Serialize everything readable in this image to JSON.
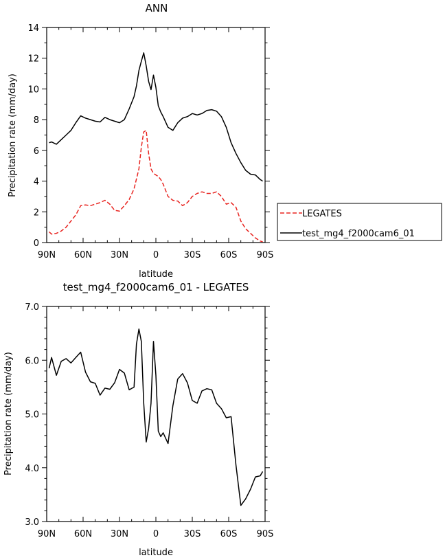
{
  "chart_data": [
    {
      "type": "line",
      "title": "ANN",
      "xlabel": "latitude",
      "ylabel": "Precipitation rate (mm/day)",
      "xlim": [
        90,
        -90
      ],
      "ylim": [
        0,
        14
      ],
      "xticks": [
        90,
        60,
        30,
        0,
        -30,
        -60,
        -90
      ],
      "xtick_labels": [
        "90N",
        "60N",
        "30N",
        "0",
        "30S",
        "60S",
        "90S"
      ],
      "yticks": [
        0,
        2,
        4,
        6,
        8,
        10,
        12,
        14
      ],
      "ytick_labels": [
        "0",
        "2",
        "4",
        "6",
        "8",
        "10",
        "12",
        "14"
      ],
      "grid": false,
      "legend_position": "right",
      "series": [
        {
          "name": "LEGATES",
          "color": "#e8231f",
          "dash": "dashed",
          "x": [
            88,
            86,
            82,
            78,
            74,
            70,
            66,
            62,
            58,
            54,
            50,
            46,
            42,
            38,
            34,
            30,
            26,
            22,
            18,
            14,
            12,
            10,
            8,
            6,
            4,
            2,
            0,
            -2,
            -4,
            -6,
            -10,
            -14,
            -18,
            -22,
            -26,
            -30,
            -34,
            -38,
            -42,
            -46,
            -50,
            -54,
            -58,
            -62,
            -66,
            -70,
            -74,
            -78,
            -82,
            -86,
            -88
          ],
          "y": [
            0.7,
            0.55,
            0.6,
            0.75,
            1.0,
            1.4,
            1.8,
            2.4,
            2.45,
            2.4,
            2.5,
            2.6,
            2.75,
            2.5,
            2.1,
            2.05,
            2.4,
            2.8,
            3.5,
            4.8,
            6.2,
            7.2,
            7.3,
            5.8,
            4.8,
            4.5,
            4.4,
            4.3,
            4.1,
            3.8,
            3.0,
            2.75,
            2.7,
            2.4,
            2.6,
            3.0,
            3.2,
            3.3,
            3.2,
            3.2,
            3.3,
            3.0,
            2.5,
            2.6,
            2.3,
            1.4,
            0.9,
            0.6,
            0.3,
            0.1,
            0.05
          ]
        },
        {
          "name": "test_mg4_f2000cam6_01",
          "color": "#000000",
          "dash": "solid",
          "x": [
            88,
            86,
            82,
            78,
            74,
            70,
            66,
            62,
            58,
            54,
            50,
            46,
            42,
            38,
            34,
            30,
            26,
            22,
            18,
            16,
            14,
            12,
            10,
            8,
            6,
            4,
            2,
            0,
            -2,
            -4,
            -6,
            -10,
            -14,
            -18,
            -22,
            -26,
            -30,
            -34,
            -38,
            -42,
            -46,
            -50,
            -54,
            -58,
            -62,
            -66,
            -70,
            -74,
            -78,
            -82,
            -86,
            -88
          ],
          "y": [
            6.5,
            6.55,
            6.4,
            6.7,
            7.0,
            7.3,
            7.8,
            8.25,
            8.1,
            8.0,
            7.9,
            7.85,
            8.15,
            8.0,
            7.9,
            7.8,
            8.0,
            8.7,
            9.5,
            10.2,
            11.2,
            11.8,
            12.35,
            11.5,
            10.5,
            9.95,
            10.9,
            10.1,
            8.9,
            8.5,
            8.2,
            7.5,
            7.3,
            7.8,
            8.1,
            8.2,
            8.4,
            8.3,
            8.4,
            8.6,
            8.65,
            8.55,
            8.2,
            7.5,
            6.5,
            5.8,
            5.2,
            4.7,
            4.45,
            4.4,
            4.1,
            4.0
          ]
        }
      ]
    },
    {
      "type": "line",
      "title": "test_mg4_f2000cam6_01 - LEGATES",
      "xlabel": "latitude",
      "ylabel": "Precipitation rate (mm/day)",
      "xlim": [
        90,
        -90
      ],
      "ylim": [
        3.0,
        7.0
      ],
      "xticks": [
        90,
        60,
        30,
        0,
        -30,
        -60,
        -90
      ],
      "xtick_labels": [
        "90N",
        "60N",
        "30N",
        "0",
        "30S",
        "60S",
        "90S"
      ],
      "yticks": [
        3.0,
        4.0,
        5.0,
        6.0,
        7.0
      ],
      "ytick_labels": [
        "3.0",
        "4.0",
        "5.0",
        "6.0",
        "7.0"
      ],
      "grid": false,
      "series": [
        {
          "color": "#000000",
          "dash": "solid",
          "x": [
            88,
            86,
            82,
            78,
            74,
            70,
            66,
            62,
            58,
            54,
            50,
            46,
            42,
            38,
            34,
            30,
            26,
            22,
            18,
            16,
            14,
            12,
            10,
            8,
            6,
            4,
            2,
            0,
            -2,
            -4,
            -6,
            -10,
            -14,
            -18,
            -22,
            -26,
            -30,
            -34,
            -38,
            -42,
            -46,
            -50,
            -54,
            -58,
            -62,
            -66,
            -70,
            -74,
            -78,
            -82,
            -86,
            -88
          ],
          "y": [
            5.85,
            6.05,
            5.72,
            5.98,
            6.03,
            5.95,
            6.05,
            6.15,
            5.78,
            5.6,
            5.57,
            5.35,
            5.48,
            5.46,
            5.58,
            5.83,
            5.76,
            5.45,
            5.5,
            6.3,
            6.58,
            6.35,
            5.2,
            4.48,
            4.73,
            5.2,
            6.35,
            5.72,
            4.68,
            4.58,
            4.65,
            4.45,
            5.15,
            5.65,
            5.75,
            5.58,
            5.25,
            5.2,
            5.43,
            5.47,
            5.45,
            5.2,
            5.1,
            4.93,
            4.95,
            4.05,
            3.3,
            3.42,
            3.6,
            3.83,
            3.85,
            3.93
          ]
        }
      ]
    }
  ]
}
